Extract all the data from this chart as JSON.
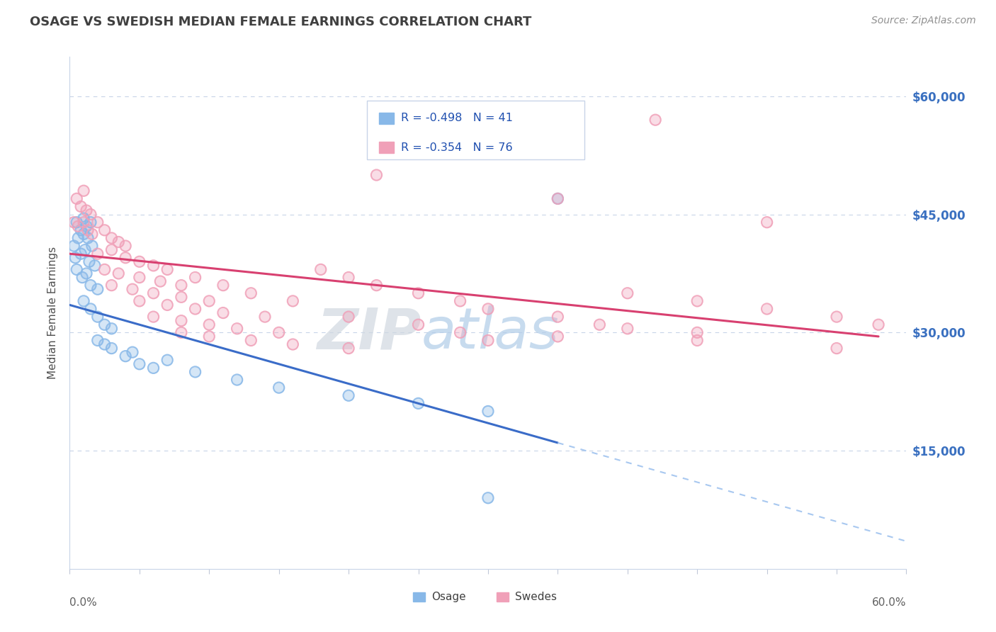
{
  "title": "OSAGE VS SWEDISH MEDIAN FEMALE EARNINGS CORRELATION CHART",
  "source": "Source: ZipAtlas.com",
  "ylabel": "Median Female Earnings",
  "right_yticks": [
    0,
    15000,
    30000,
    45000,
    60000
  ],
  "right_yticklabels": [
    "",
    "$15,000",
    "$30,000",
    "$45,000",
    "$60,000"
  ],
  "watermark_part1": "ZIP",
  "watermark_part2": "atlas",
  "osage_color": "#88b8e8",
  "swedes_color": "#f0a0b8",
  "trendline_osage_color": "#3a6cc8",
  "trendline_swedes_color": "#d84070",
  "dashed_line_color": "#a8c8f0",
  "osage_R": -0.498,
  "osage_N": 41,
  "swedes_R": -0.354,
  "swedes_N": 76,
  "osage_trend_x0": 0,
  "osage_trend_y0": 33500,
  "osage_trend_x1": 35,
  "osage_trend_y1": 16000,
  "swedes_trend_x0": 0,
  "swedes_trend_y0": 40000,
  "swedes_trend_x1": 58,
  "swedes_trend_y1": 29500,
  "osage_points": [
    [
      0.5,
      44000
    ],
    [
      0.8,
      43000
    ],
    [
      1.0,
      44500
    ],
    [
      1.2,
      43500
    ],
    [
      1.5,
      44000
    ],
    [
      0.3,
      41000
    ],
    [
      0.6,
      42000
    ],
    [
      1.0,
      42500
    ],
    [
      1.3,
      42000
    ],
    [
      1.6,
      41000
    ],
    [
      0.4,
      39500
    ],
    [
      0.8,
      40000
    ],
    [
      1.1,
      40500
    ],
    [
      1.4,
      39000
    ],
    [
      1.8,
      38500
    ],
    [
      0.5,
      38000
    ],
    [
      0.9,
      37000
    ],
    [
      1.2,
      37500
    ],
    [
      1.5,
      36000
    ],
    [
      2.0,
      35500
    ],
    [
      1.0,
      34000
    ],
    [
      1.5,
      33000
    ],
    [
      2.0,
      32000
    ],
    [
      2.5,
      31000
    ],
    [
      3.0,
      30500
    ],
    [
      2.0,
      29000
    ],
    [
      3.0,
      28000
    ],
    [
      4.0,
      27000
    ],
    [
      5.0,
      26000
    ],
    [
      6.0,
      25500
    ],
    [
      2.5,
      28500
    ],
    [
      4.5,
      27500
    ],
    [
      7.0,
      26500
    ],
    [
      9.0,
      25000
    ],
    [
      12.0,
      24000
    ],
    [
      15.0,
      23000
    ],
    [
      20.0,
      22000
    ],
    [
      25.0,
      21000
    ],
    [
      30.0,
      20000
    ],
    [
      35.0,
      47000
    ],
    [
      30.0,
      9000
    ]
  ],
  "swedes_points": [
    [
      0.5,
      47000
    ],
    [
      1.0,
      48000
    ],
    [
      0.8,
      46000
    ],
    [
      1.2,
      45500
    ],
    [
      1.5,
      45000
    ],
    [
      0.3,
      44000
    ],
    [
      0.6,
      43500
    ],
    [
      1.0,
      44000
    ],
    [
      1.3,
      43000
    ],
    [
      1.6,
      42500
    ],
    [
      2.0,
      44000
    ],
    [
      2.5,
      43000
    ],
    [
      3.0,
      42000
    ],
    [
      3.5,
      41500
    ],
    [
      4.0,
      41000
    ],
    [
      2.0,
      40000
    ],
    [
      3.0,
      40500
    ],
    [
      4.0,
      39500
    ],
    [
      5.0,
      39000
    ],
    [
      6.0,
      38500
    ],
    [
      2.5,
      38000
    ],
    [
      3.5,
      37500
    ],
    [
      5.0,
      37000
    ],
    [
      6.5,
      36500
    ],
    [
      8.0,
      36000
    ],
    [
      3.0,
      36000
    ],
    [
      4.5,
      35500
    ],
    [
      6.0,
      35000
    ],
    [
      8.0,
      34500
    ],
    [
      10.0,
      34000
    ],
    [
      5.0,
      34000
    ],
    [
      7.0,
      33500
    ],
    [
      9.0,
      33000
    ],
    [
      11.0,
      32500
    ],
    [
      14.0,
      32000
    ],
    [
      6.0,
      32000
    ],
    [
      8.0,
      31500
    ],
    [
      10.0,
      31000
    ],
    [
      12.0,
      30500
    ],
    [
      15.0,
      30000
    ],
    [
      8.0,
      30000
    ],
    [
      10.0,
      29500
    ],
    [
      13.0,
      29000
    ],
    [
      16.0,
      28500
    ],
    [
      20.0,
      28000
    ],
    [
      7.0,
      38000
    ],
    [
      9.0,
      37000
    ],
    [
      11.0,
      36000
    ],
    [
      13.0,
      35000
    ],
    [
      16.0,
      34000
    ],
    [
      18.0,
      38000
    ],
    [
      20.0,
      37000
    ],
    [
      22.0,
      36000
    ],
    [
      25.0,
      35000
    ],
    [
      28.0,
      34000
    ],
    [
      20.0,
      32000
    ],
    [
      25.0,
      31000
    ],
    [
      28.0,
      30000
    ],
    [
      30.0,
      29000
    ],
    [
      35.0,
      29500
    ],
    [
      30.0,
      33000
    ],
    [
      35.0,
      32000
    ],
    [
      38.0,
      31000
    ],
    [
      40.0,
      30500
    ],
    [
      45.0,
      30000
    ],
    [
      40.0,
      35000
    ],
    [
      45.0,
      34000
    ],
    [
      50.0,
      33000
    ],
    [
      55.0,
      32000
    ],
    [
      58.0,
      31000
    ],
    [
      42.0,
      57000
    ],
    [
      22.0,
      50000
    ],
    [
      35.0,
      47000
    ],
    [
      50.0,
      44000
    ],
    [
      45.0,
      29000
    ],
    [
      55.0,
      28000
    ]
  ],
  "xlim": [
    0,
    60
  ],
  "ylim": [
    0,
    65000
  ],
  "background_color": "#ffffff",
  "grid_color": "#c8d4e8",
  "title_color": "#404040",
  "source_color": "#909090"
}
